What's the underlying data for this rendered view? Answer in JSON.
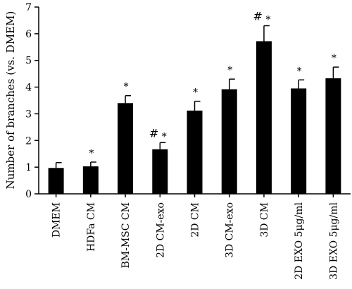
{
  "chart_data": {
    "type": "bar",
    "ylabel": "Number of branches (vs. DMEM)",
    "xlabel": "",
    "ylim": [
      0,
      7
    ],
    "yticks": [
      0,
      1,
      2,
      3,
      4,
      5,
      6,
      7
    ],
    "categories": [
      "DMEM",
      "HDFa CM",
      "BM-MSC CM",
      "2D CM-exo",
      "2D CM",
      "3D CM-exo",
      "3D CM",
      "2D EXO 5μg/ml",
      "3D EXO 5μg/ml"
    ],
    "values": [
      0.97,
      1.03,
      3.4,
      1.67,
      3.12,
      3.92,
      5.72,
      3.95,
      4.33
    ],
    "errors": [
      0.2,
      0.16,
      0.28,
      0.25,
      0.35,
      0.38,
      0.58,
      0.32,
      0.42
    ],
    "markers": [
      "",
      "*",
      "*",
      "#*",
      "*",
      "*",
      "#*",
      "*",
      "*"
    ],
    "bar_color": "#000000",
    "grid": false,
    "legend": "none"
  }
}
